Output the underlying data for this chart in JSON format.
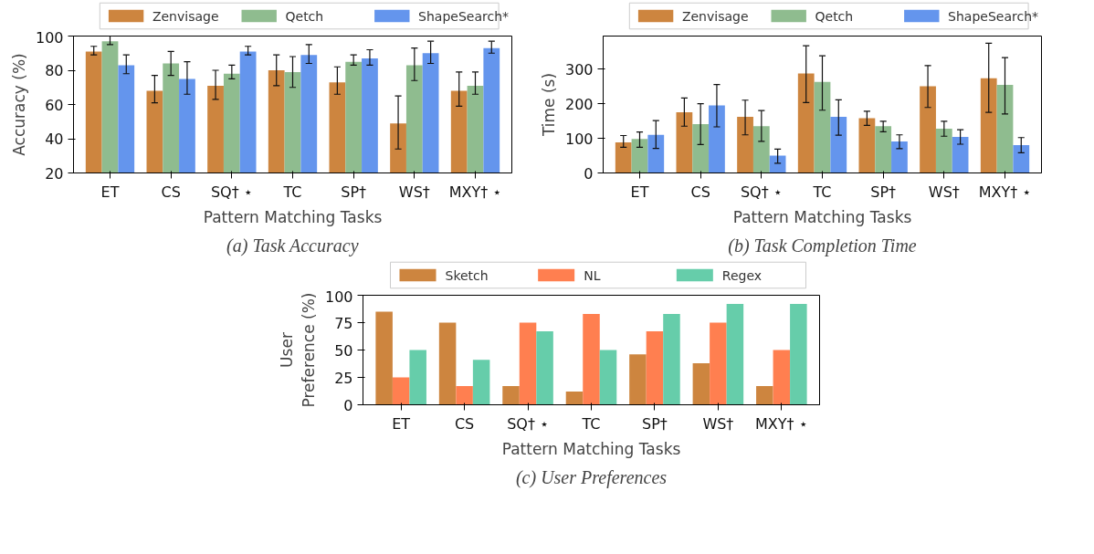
{
  "chart_data": [
    {
      "type": "bar",
      "title": "(a) Task Accuracy",
      "xlabel": "Pattern Matching Tasks",
      "ylabel": "Accuracy (%)",
      "categories": [
        "ET",
        "CS",
        "SQ† ⋆",
        "TC",
        "SP†",
        "WS†",
        "MXY† ⋆"
      ],
      "ylim": [
        20,
        100
      ],
      "yticks": [
        20,
        40,
        60,
        80,
        100
      ],
      "grid": false,
      "legend": "top",
      "series": [
        {
          "name": "Zenvisage",
          "color": "#cd853f",
          "values": [
            91,
            68,
            71,
            80,
            73,
            49,
            68
          ],
          "errors": [
            [
              89,
              94
            ],
            [
              61,
              77
            ],
            [
              63,
              80
            ],
            [
              71,
              89
            ],
            [
              66,
              82
            ],
            [
              34,
              65
            ],
            [
              59,
              79
            ]
          ]
        },
        {
          "name": "Qetch",
          "color": "#8fbc8f",
          "values": [
            97,
            84,
            78,
            79,
            85,
            83,
            71
          ],
          "errors": [
            [
              95,
              100
            ],
            [
              77,
              91
            ],
            [
              75,
              83
            ],
            [
              70,
              88
            ],
            [
              83,
              89
            ],
            [
              74,
              93
            ],
            [
              66,
              79
            ]
          ]
        },
        {
          "name": "ShapeSearch*",
          "color": "#6495ed",
          "values": [
            83,
            75,
            91,
            89,
            87,
            90,
            93
          ],
          "errors": [
            [
              78,
              89
            ],
            [
              66,
              85
            ],
            [
              89,
              94
            ],
            [
              84,
              95
            ],
            [
              83,
              92
            ],
            [
              84,
              97
            ],
            [
              90,
              97
            ]
          ]
        }
      ]
    },
    {
      "type": "bar",
      "title": "(b) Task Completion Time",
      "xlabel": "Pattern Matching Tasks",
      "ylabel": "Time (s)",
      "categories": [
        "ET",
        "CS",
        "SQ† ⋆",
        "TC",
        "SP†",
        "WS†",
        "MXY† ⋆"
      ],
      "ylim": [
        0,
        395
      ],
      "yticks": [
        0,
        100,
        200,
        300
      ],
      "grid": false,
      "legend": "top",
      "series": [
        {
          "name": "Zenvisage",
          "color": "#cd853f",
          "values": [
            88,
            175,
            162,
            287,
            158,
            250,
            273
          ],
          "errors": [
            [
              74,
              108
            ],
            [
              135,
              216
            ],
            [
              110,
              210
            ],
            [
              203,
              367
            ],
            [
              137,
              178
            ],
            [
              189,
              310
            ],
            [
              175,
              374
            ]
          ]
        },
        {
          "name": "Qetch",
          "color": "#8fbc8f",
          "values": [
            98,
            141,
            135,
            263,
            135,
            128,
            254
          ],
          "errors": [
            [
              74,
              118
            ],
            [
              82,
              200
            ],
            [
              91,
              180
            ],
            [
              181,
              338
            ],
            [
              119,
              149
            ],
            [
              106,
              149
            ],
            [
              170,
              333
            ]
          ]
        },
        {
          "name": "ShapeSearch*",
          "color": "#6495ed",
          "values": [
            110,
            195,
            50,
            162,
            91,
            104,
            80
          ],
          "errors": [
            [
              71,
              151
            ],
            [
              133,
              255
            ],
            [
              28,
              69
            ],
            [
              109,
              211
            ],
            [
              70,
              110
            ],
            [
              83,
              125
            ],
            [
              58,
              102
            ]
          ]
        }
      ]
    },
    {
      "type": "bar",
      "title": "(c) User Preferences",
      "xlabel": "Pattern Matching Tasks",
      "ylabel": "User\nPreference (%)",
      "categories": [
        "ET",
        "CS",
        "SQ† ⋆",
        "TC",
        "SP†",
        "WS†",
        "MXY† ⋆"
      ],
      "ylim": [
        0,
        100
      ],
      "yticks": [
        0,
        25,
        50,
        75,
        100
      ],
      "grid": false,
      "legend": "top",
      "series": [
        {
          "name": "Sketch",
          "color": "#cd853f",
          "values": [
            85,
            75,
            17,
            12,
            46,
            38,
            17
          ]
        },
        {
          "name": "NL",
          "color": "#ff7f50",
          "values": [
            25,
            17,
            75,
            83,
            67,
            75,
            50
          ]
        },
        {
          "name": "Regex",
          "color": "#66cdaa",
          "values": [
            50,
            41,
            67,
            50,
            83,
            92,
            92
          ]
        }
      ]
    }
  ]
}
